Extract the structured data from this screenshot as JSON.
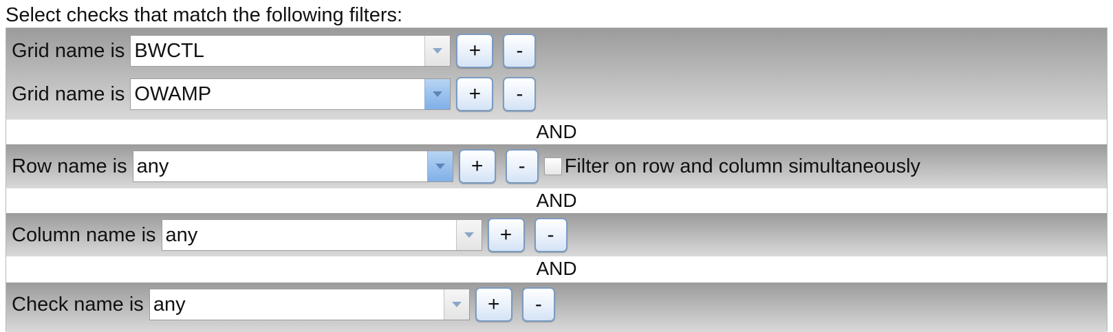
{
  "heading": "Select checks that match the following filters:",
  "grid_filters": [
    {
      "label": "Grid name is",
      "value": "BWCTL",
      "add": "+",
      "remove": "-"
    },
    {
      "label": "Grid name is",
      "value": "OWAMP",
      "add": "+",
      "remove": "-"
    }
  ],
  "and_1": "AND",
  "row_filter": {
    "label": "Row name is",
    "value": "any",
    "add": "+",
    "remove": "-",
    "checkbox_label": "Filter on row and column simultaneously",
    "checked": false
  },
  "and_2": "AND",
  "column_filter": {
    "label": "Column name is",
    "value": "any",
    "add": "+",
    "remove": "-"
  },
  "and_3": "AND",
  "check_filter": {
    "label": "Check name is",
    "value": "any",
    "add": "+",
    "remove": "-"
  },
  "colors": {
    "button_border": "#7b9bc2",
    "combo_arrow_active": "#7fb0e8",
    "group_dark": "#9b9b9b",
    "group_light": "#d9d9d9"
  }
}
